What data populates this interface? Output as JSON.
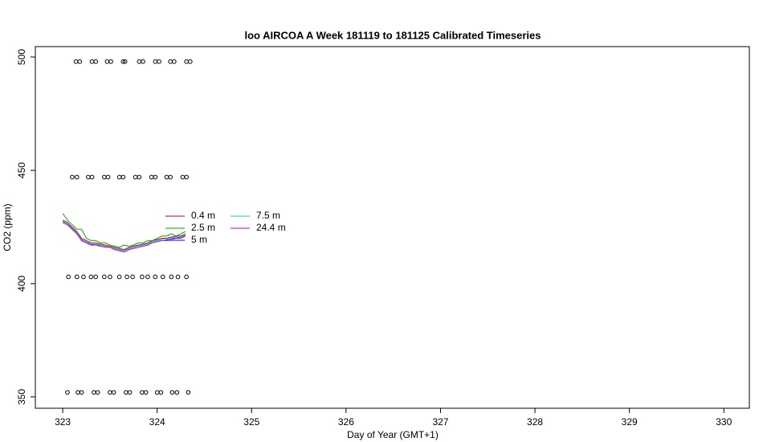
{
  "chart_data": {
    "type": "line",
    "title": "loo AIRCOA A  Week 181119 to 181125  Calibrated Timeseries",
    "x_label": "Day of Year (GMT+1)",
    "y_label": "CO2 (ppm)",
    "xlim": [
      322.71,
      330.27
    ],
    "xticks": [
      323,
      324,
      325,
      326,
      327,
      328,
      329,
      330
    ],
    "ylim": [
      345,
      504.6
    ],
    "yticks": [
      350,
      400,
      450,
      500
    ],
    "x": [
      323.0,
      323.05,
      323.1,
      323.15,
      323.2,
      323.25,
      323.3,
      323.35,
      323.4,
      323.45,
      323.5,
      323.55,
      323.6,
      323.65,
      323.7,
      323.75,
      323.8,
      323.85,
      323.9,
      323.95,
      324.0,
      324.05,
      324.1,
      324.15,
      324.2,
      324.25,
      324.3
    ],
    "series": [
      {
        "name": "0.4 m",
        "color": "#cc0000",
        "values": [
          428,
          427,
          425,
          423,
          420,
          419,
          418,
          418,
          417.5,
          417,
          416.5,
          416,
          415.5,
          415,
          416,
          416.5,
          417,
          417.5,
          418,
          419,
          419.5,
          420,
          420,
          420.5,
          421,
          421,
          422
        ]
      },
      {
        "name": "2.5 m",
        "color": "#00aa00",
        "values": [
          431,
          428,
          426,
          424,
          424,
          420,
          419,
          419,
          418,
          418,
          417,
          416.5,
          416,
          417,
          416.5,
          417,
          418,
          418,
          419,
          419,
          420,
          421,
          421,
          422,
          421,
          422,
          423
        ]
      },
      {
        "name": "5 m",
        "color": "#0000ff",
        "values": [
          427,
          426,
          424,
          422,
          419,
          418,
          417.5,
          417,
          417,
          416.5,
          416,
          415.5,
          415,
          414.5,
          415.5,
          416,
          416.5,
          417,
          417.5,
          418.5,
          419,
          419.5,
          419.5,
          420,
          420,
          420.5,
          421
        ]
      },
      {
        "name": "7.5 m",
        "color": "#00cccc",
        "values": [
          427.5,
          426.5,
          424.5,
          422.5,
          419.5,
          418.5,
          417.5,
          417.5,
          417,
          416.5,
          416,
          415.5,
          415,
          414.5,
          415.5,
          416,
          416.5,
          417,
          417.5,
          418.5,
          419,
          419.5,
          419.5,
          420,
          420.5,
          420.5,
          421.5
        ]
      },
      {
        "name": "24.4 m",
        "color": "#cc00cc",
        "values": [
          427,
          426,
          424,
          422,
          419,
          418,
          417,
          417,
          416.5,
          416,
          416,
          415,
          414.5,
          414,
          415,
          415.5,
          416,
          416.5,
          417,
          418,
          418.5,
          419,
          419,
          419.5,
          420,
          420,
          421
        ]
      }
    ],
    "calibration": [
      {
        "y": 498,
        "x": [
          323.14,
          323.18,
          323.31,
          323.35,
          323.47,
          323.51,
          323.64,
          323.66,
          323.81,
          323.85,
          323.98,
          324.02,
          324.14,
          324.18,
          324.31,
          324.35
        ]
      },
      {
        "y": 447,
        "x": [
          323.1,
          323.15,
          323.27,
          323.31,
          323.44,
          323.48,
          323.6,
          323.64,
          323.77,
          323.81,
          323.94,
          323.98,
          324.1,
          324.14,
          324.27,
          324.31
        ]
      },
      {
        "y": 403,
        "x": [
          323.06,
          323.15,
          323.22,
          323.3,
          323.35,
          323.44,
          323.5,
          323.6,
          323.68,
          323.74,
          323.84,
          323.9,
          323.98,
          324.06,
          324.15,
          324.22,
          324.31
        ]
      },
      {
        "y": 352,
        "x": [
          323.05,
          323.16,
          323.2,
          323.33,
          323.37,
          323.5,
          323.54,
          323.67,
          323.71,
          323.84,
          323.88,
          324.0,
          324.04,
          324.16,
          324.21,
          324.33
        ]
      }
    ],
    "point_color": "#000000",
    "legend_columns": 2
  }
}
